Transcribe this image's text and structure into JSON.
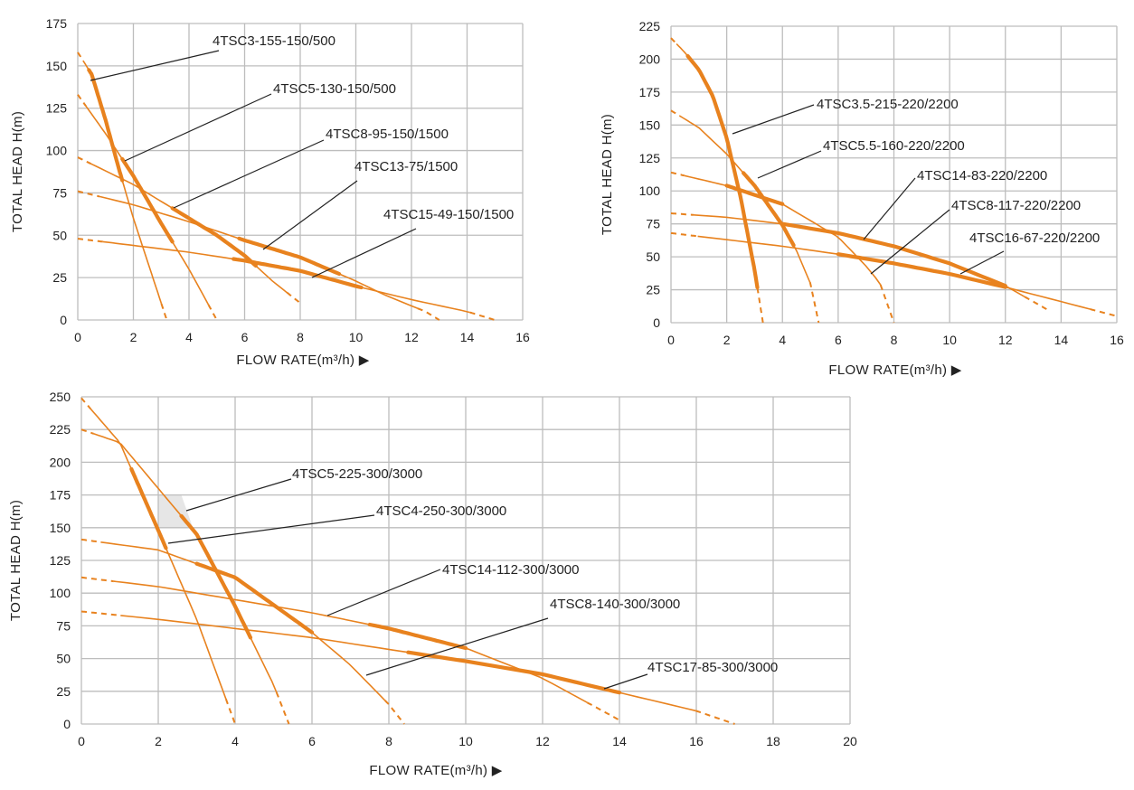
{
  "chart_data": [
    {
      "type": "line",
      "xlabel": "FLOW RATE(m³/h) ▶",
      "ylabel": "TOTAL  HEAD  H(m)",
      "xlim": [
        0,
        16
      ],
      "ylim": [
        0,
        175
      ],
      "xticks": [
        "0",
        "2",
        "4",
        "6",
        "8",
        "10",
        "12",
        "14",
        "16"
      ],
      "yticks": [
        "0",
        "25",
        "50",
        "75",
        "100",
        "125",
        "150",
        "175"
      ],
      "grid": true,
      "series": [
        {
          "name": "4TSC3-155-150/500",
          "x": [
            0,
            0.5,
            1.0,
            1.5,
            2.0,
            2.5,
            3.0,
            3.2
          ],
          "y": [
            158,
            145,
            118,
            88,
            60,
            35,
            10,
            0
          ],
          "bold": [
            0.4,
            1.6
          ]
        },
        {
          "name": "4TSC5-130-150/500",
          "x": [
            0,
            1,
            2,
            3,
            4,
            4.5,
            5.0
          ],
          "y": [
            133,
            110,
            85,
            57,
            30,
            15,
            0
          ],
          "bold": [
            1.6,
            3.4
          ]
        },
        {
          "name": "4TSC8-95-150/1500",
          "x": [
            0,
            2,
            4,
            5,
            6,
            7,
            8
          ],
          "y": [
            96,
            80,
            60,
            50,
            38,
            23,
            10
          ],
          "bold": [
            3.4,
            6.4
          ]
        },
        {
          "name": "4TSC13-75/1500",
          "x": [
            0,
            2,
            4,
            6,
            8,
            9,
            10,
            11,
            12.5,
            13
          ],
          "y": [
            76,
            68,
            58,
            47,
            37,
            30,
            23,
            15,
            5,
            0
          ],
          "bold": [
            5.8,
            9.4
          ]
        },
        {
          "name": "4TSC15-49-150/1500",
          "x": [
            0,
            2,
            4,
            6,
            8,
            10,
            12,
            14,
            15
          ],
          "y": [
            48,
            44,
            40,
            35,
            29,
            20,
            12,
            5,
            0
          ],
          "bold": [
            5.6,
            10.2
          ]
        }
      ],
      "labels": [
        "4TSC3-155-150/500",
        "4TSC5-130-150/500",
        "4TSC8-95-150/1500",
        "4TSC13-75/1500",
        "4TSC15-49-150/1500"
      ]
    },
    {
      "type": "line",
      "xlabel": "FLOW RATE(m³/h) ▶",
      "ylabel": "TOTAL  HEAD  H(m)",
      "xlim": [
        0,
        16
      ],
      "ylim": [
        0,
        225
      ],
      "xticks": [
        "0",
        "2",
        "4",
        "6",
        "8",
        "10",
        "12",
        "14",
        "16"
      ],
      "yticks": [
        "0",
        "25",
        "50",
        "75",
        "100",
        "125",
        "150",
        "175",
        "200",
        "225"
      ],
      "grid": true,
      "series": [
        {
          "name": "4TSC3.5-215-220/2200",
          "x": [
            0,
            0.5,
            1,
            1.5,
            2,
            2.5,
            3,
            3.3
          ],
          "y": [
            216,
            205,
            192,
            172,
            140,
            95,
            40,
            0
          ],
          "bold": [
            0.6,
            3.1
          ]
        },
        {
          "name": "4TSC5.5-160-220/2200",
          "x": [
            0,
            1,
            2,
            3,
            4,
            4.5,
            5,
            5.3
          ],
          "y": [
            161,
            148,
            128,
            104,
            74,
            55,
            30,
            0
          ],
          "bold": [
            2.6,
            4.4
          ]
        },
        {
          "name": "4TSC14-83-220/2200",
          "x": [
            0,
            2,
            4,
            6,
            7,
            7.5,
            8
          ],
          "y": [
            114,
            104,
            90,
            65,
            43,
            30,
            0
          ],
          "bold": [
            2.0,
            4.0
          ]
        },
        {
          "name": "4TSC8-117-220/2200",
          "x": [
            0,
            2,
            4,
            6,
            8,
            10,
            12,
            13.5
          ],
          "y": [
            83,
            80,
            75,
            68,
            58,
            45,
            28,
            10
          ],
          "bold": [
            4.0,
            12.0
          ]
        },
        {
          "name": "4TSC16-67-220/2200",
          "x": [
            0,
            2,
            4,
            6,
            8,
            10,
            12,
            14,
            16
          ],
          "y": [
            68,
            63,
            58,
            52,
            45,
            37,
            27,
            16,
            5
          ],
          "bold": [
            6.0,
            12.0
          ]
        }
      ],
      "labels": [
        "4TSC3.5-215-220/2200",
        "4TSC5.5-160-220/2200",
        "4TSC14-83-220/2200",
        "4TSC8-117-220/2200",
        "4TSC16-67-220/2200"
      ]
    },
    {
      "type": "line",
      "xlabel": "FLOW RATE(m³/h) ▶",
      "ylabel": "TOTAL  HEAD  H(m)",
      "xlim": [
        0,
        20
      ],
      "ylim": [
        0,
        250
      ],
      "xticks": [
        "0",
        "2",
        "4",
        "6",
        "8",
        "10",
        "12",
        "14",
        "16",
        "18",
        "20"
      ],
      "yticks": [
        "0",
        "25",
        "50",
        "75",
        "100",
        "125",
        "150",
        "175",
        "200",
        "225",
        "250"
      ],
      "grid": true,
      "series": [
        {
          "name": "4TSC4-250-300/3000",
          "x": [
            0,
            1,
            2,
            3,
            3.5,
            4
          ],
          "y": [
            249,
            215,
            148,
            80,
            40,
            0
          ],
          "bold": [
            1.3,
            2.2
          ]
        },
        {
          "name": "4TSC5-225-300/3000",
          "x": [
            0,
            1,
            2,
            3,
            4,
            5,
            5.4
          ],
          "y": [
            225,
            215,
            180,
            145,
            90,
            30,
            0
          ],
          "bold": [
            2.6,
            4.4
          ]
        },
        {
          "name": "4TSC8-140-300/3000",
          "x": [
            0,
            2,
            4,
            6,
            7,
            8,
            8.4
          ],
          "y": [
            141,
            133,
            112,
            70,
            45,
            15,
            0
          ],
          "bold": [
            3.0,
            6.0
          ]
        },
        {
          "name": "4TSC14-112-300/3000",
          "x": [
            0,
            2,
            4,
            6,
            8,
            10,
            12,
            14
          ],
          "y": [
            112,
            105,
            95,
            85,
            73,
            58,
            35,
            3
          ],
          "bold": [
            7.5,
            10.0
          ]
        },
        {
          "name": "4TSC17-85-300/3000",
          "x": [
            0,
            2,
            4,
            6,
            8,
            10,
            12,
            14,
            16,
            17
          ],
          "y": [
            86,
            80,
            73,
            66,
            57,
            48,
            38,
            24,
            10,
            0
          ],
          "bold": [
            8.5,
            14.0
          ]
        }
      ],
      "labels": [
        "4TSC5-225-300/3000",
        "4TSC4-250-300/3000",
        "4TSC14-112-300/3000",
        "4TSC8-140-300/3000",
        "4TSC17-85-300/3000"
      ]
    }
  ],
  "colors": {
    "curve": "#e8821e",
    "grid": "#bdbdbd",
    "text": "#222222",
    "leader": "#222222",
    "shade": "#e6e6e6"
  }
}
